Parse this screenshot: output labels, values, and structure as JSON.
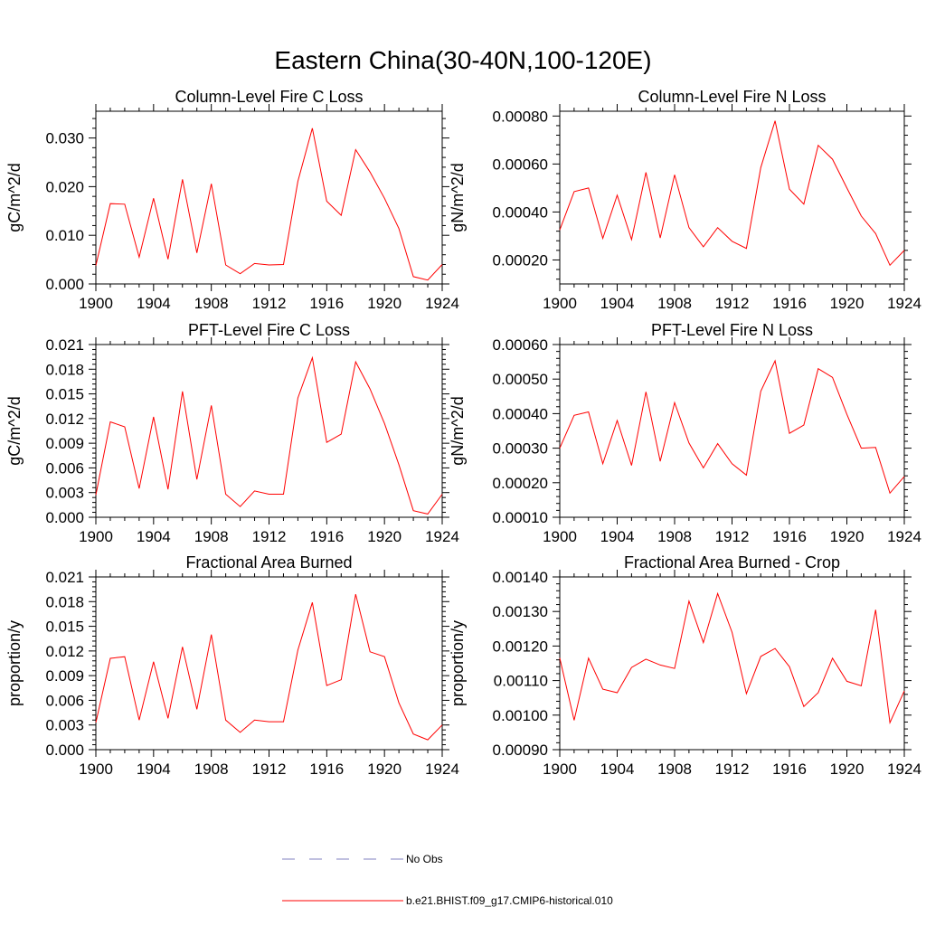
{
  "figure_title": "Eastern China(30-40N,100-120E)",
  "legend": [
    {
      "label": "No Obs",
      "color": "#8080c0",
      "style": "dashed"
    },
    {
      "label": "b.e21.BHIST.f09_g17.CMIP6-historical.010",
      "color": "#ff0000",
      "style": "solid"
    }
  ],
  "chart_data": [
    {
      "type": "line",
      "title": "Column-Level Fire C Loss",
      "ylabel": "gC/m^2/d",
      "xlim": [
        1900,
        1924
      ],
      "ylim": [
        0.0,
        0.0355
      ],
      "xticks": [
        1900,
        1904,
        1908,
        1912,
        1916,
        1920,
        1924
      ],
      "xtick_labels": [
        "1900",
        "1904",
        "1908",
        "1912",
        "1916",
        "1920",
        "1924"
      ],
      "yticks": [
        0.0,
        0.01,
        0.02,
        0.03
      ],
      "ytick_labels": [
        "0.000",
        "0.010",
        "0.020",
        "0.030"
      ],
      "series": [
        {
          "color": "#ff0000",
          "x": [
            1900,
            1901,
            1902,
            1903,
            1904,
            1905,
            1906,
            1907,
            1908,
            1909,
            1910,
            1911,
            1912,
            1913,
            1914,
            1915,
            1916,
            1917,
            1918,
            1919,
            1920,
            1921,
            1922,
            1923,
            1924
          ],
          "y": [
            0.0038,
            0.0165,
            0.0164,
            0.0055,
            0.0176,
            0.0051,
            0.0215,
            0.0064,
            0.0206,
            0.0039,
            0.0021,
            0.0042,
            0.0039,
            0.004,
            0.0211,
            0.032,
            0.017,
            0.0141,
            0.0276,
            0.023,
            0.0176,
            0.0114,
            0.0015,
            0.0008,
            0.004
          ]
        }
      ]
    },
    {
      "type": "line",
      "title": "Column-Level Fire N Loss",
      "ylabel": "gN/m^2/d",
      "xlim": [
        1900,
        1924
      ],
      "ylim": [
        0.0001,
        0.00082
      ],
      "xticks": [
        1900,
        1904,
        1908,
        1912,
        1916,
        1920,
        1924
      ],
      "xtick_labels": [
        "1900",
        "1904",
        "1908",
        "1912",
        "1916",
        "1920",
        "1924"
      ],
      "yticks": [
        0.0002,
        0.0004,
        0.0006,
        0.0008
      ],
      "ytick_labels": [
        "0.00020",
        "0.00040",
        "0.00060",
        "0.00080"
      ],
      "series": [
        {
          "color": "#ff0000",
          "x": [
            1900,
            1901,
            1902,
            1903,
            1904,
            1905,
            1906,
            1907,
            1908,
            1909,
            1910,
            1911,
            1912,
            1913,
            1914,
            1915,
            1916,
            1917,
            1918,
            1919,
            1920,
            1921,
            1922,
            1923,
            1924
          ],
          "y": [
            0.000325,
            0.000485,
            0.0005,
            0.00029,
            0.00047,
            0.000285,
            0.000565,
            0.000292,
            0.000555,
            0.000335,
            0.000255,
            0.000335,
            0.000278,
            0.000248,
            0.000585,
            0.00078,
            0.000495,
            0.000433,
            0.000678,
            0.00062,
            0.0005,
            0.000383,
            0.00031,
            0.000178,
            0.00024
          ]
        }
      ]
    },
    {
      "type": "line",
      "title": "PFT-Level Fire C Loss",
      "ylabel": "gC/m^2/d",
      "xlim": [
        1900,
        1924
      ],
      "ylim": [
        0.0,
        0.021
      ],
      "xticks": [
        1900,
        1904,
        1908,
        1912,
        1916,
        1920,
        1924
      ],
      "xtick_labels": [
        "1900",
        "1904",
        "1908",
        "1912",
        "1916",
        "1920",
        "1924"
      ],
      "yticks": [
        0.0,
        0.003,
        0.006,
        0.009,
        0.012,
        0.015,
        0.018,
        0.021
      ],
      "ytick_labels": [
        "0.000",
        "0.003",
        "0.006",
        "0.009",
        "0.012",
        "0.015",
        "0.018",
        "0.021"
      ],
      "series": [
        {
          "color": "#ff0000",
          "x": [
            1900,
            1901,
            1902,
            1903,
            1904,
            1905,
            1906,
            1907,
            1908,
            1909,
            1910,
            1911,
            1912,
            1913,
            1914,
            1915,
            1916,
            1917,
            1918,
            1919,
            1920,
            1921,
            1922,
            1923,
            1924
          ],
          "y": [
            0.0027,
            0.0116,
            0.011,
            0.0035,
            0.0122,
            0.0034,
            0.0153,
            0.0046,
            0.0136,
            0.0028,
            0.0013,
            0.0032,
            0.0028,
            0.0028,
            0.0145,
            0.0194,
            0.0091,
            0.0101,
            0.0189,
            0.0156,
            0.0114,
            0.0064,
            0.0008,
            0.0004,
            0.0028
          ]
        }
      ]
    },
    {
      "type": "line",
      "title": "PFT-Level Fire N Loss",
      "ylabel": "gN/m^2/d",
      "xlim": [
        1900,
        1924
      ],
      "ylim": [
        0.0001,
        0.0006
      ],
      "xticks": [
        1900,
        1904,
        1908,
        1912,
        1916,
        1920,
        1924
      ],
      "xtick_labels": [
        "1900",
        "1904",
        "1908",
        "1912",
        "1916",
        "1920",
        "1924"
      ],
      "yticks": [
        0.0001,
        0.0002,
        0.0003,
        0.0004,
        0.0005,
        0.0006
      ],
      "ytick_labels": [
        "0.00010",
        "0.00020",
        "0.00030",
        "0.00040",
        "0.00050",
        "0.00060"
      ],
      "series": [
        {
          "color": "#ff0000",
          "x": [
            1900,
            1901,
            1902,
            1903,
            1904,
            1905,
            1906,
            1907,
            1908,
            1909,
            1910,
            1911,
            1912,
            1913,
            1914,
            1915,
            1916,
            1917,
            1918,
            1919,
            1920,
            1921,
            1922,
            1923,
            1924
          ],
          "y": [
            0.0003,
            0.000395,
            0.000405,
            0.000255,
            0.00038,
            0.00025,
            0.000463,
            0.000262,
            0.000432,
            0.000315,
            0.000243,
            0.000313,
            0.000255,
            0.000222,
            0.000465,
            0.000553,
            0.000343,
            0.000367,
            0.00053,
            0.000505,
            0.000398,
            0.0003,
            0.000302,
            0.00017,
            0.000218
          ]
        }
      ]
    },
    {
      "type": "line",
      "title": "Fractional Area Burned",
      "ylabel": "proportion/y",
      "xlim": [
        1900,
        1924
      ],
      "ylim": [
        0.0,
        0.021
      ],
      "xticks": [
        1900,
        1904,
        1908,
        1912,
        1916,
        1920,
        1924
      ],
      "xtick_labels": [
        "1900",
        "1904",
        "1908",
        "1912",
        "1916",
        "1920",
        "1924"
      ],
      "yticks": [
        0.0,
        0.003,
        0.006,
        0.009,
        0.012,
        0.015,
        0.018,
        0.021
      ],
      "ytick_labels": [
        "0.000",
        "0.003",
        "0.006",
        "0.009",
        "0.012",
        "0.015",
        "0.018",
        "0.021"
      ],
      "series": [
        {
          "color": "#ff0000",
          "x": [
            1900,
            1901,
            1902,
            1903,
            1904,
            1905,
            1906,
            1907,
            1908,
            1909,
            1910,
            1911,
            1912,
            1913,
            1914,
            1915,
            1916,
            1917,
            1918,
            1919,
            1920,
            1921,
            1922,
            1923,
            1924
          ],
          "y": [
            0.0033,
            0.0111,
            0.0113,
            0.0036,
            0.0107,
            0.0038,
            0.0125,
            0.0049,
            0.014,
            0.0036,
            0.0021,
            0.0036,
            0.0034,
            0.0034,
            0.0121,
            0.0179,
            0.0078,
            0.0085,
            0.0189,
            0.0119,
            0.0113,
            0.0057,
            0.0019,
            0.0012,
            0.003
          ]
        }
      ]
    },
    {
      "type": "line",
      "title": "Fractional Area Burned - Crop",
      "ylabel": "proportion/y",
      "xlim": [
        1900,
        1924
      ],
      "ylim": [
        0.0009,
        0.0014
      ],
      "xticks": [
        1900,
        1904,
        1908,
        1912,
        1916,
        1920,
        1924
      ],
      "xtick_labels": [
        "1900",
        "1904",
        "1908",
        "1912",
        "1916",
        "1920",
        "1924"
      ],
      "yticks": [
        0.0009,
        0.001,
        0.0011,
        0.0012,
        0.0013,
        0.0014
      ],
      "ytick_labels": [
        "0.00090",
        "0.00100",
        "0.00110",
        "0.00120",
        "0.00130",
        "0.00140"
      ],
      "series": [
        {
          "color": "#ff0000",
          "x": [
            1900,
            1901,
            1902,
            1903,
            1904,
            1905,
            1906,
            1907,
            1908,
            1909,
            1910,
            1911,
            1912,
            1913,
            1914,
            1915,
            1916,
            1917,
            1918,
            1919,
            1920,
            1921,
            1922,
            1923,
            1924
          ],
          "y": [
            0.001165,
            0.000985,
            0.001165,
            0.001075,
            0.001065,
            0.001138,
            0.001162,
            0.001145,
            0.001135,
            0.00133,
            0.00121,
            0.001352,
            0.00124,
            0.001062,
            0.00117,
            0.001193,
            0.00114,
            0.001025,
            0.001065,
            0.001165,
            0.001098,
            0.001085,
            0.001305,
            0.000978,
            0.00107
          ]
        }
      ]
    }
  ]
}
